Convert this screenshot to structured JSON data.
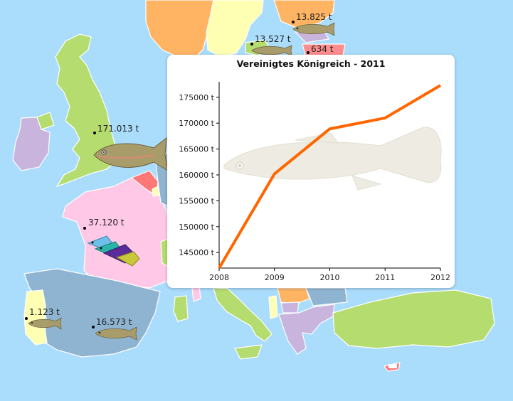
{
  "map": {
    "colors": {
      "sea": "#aadcfc",
      "green": "#b4dc6e",
      "pink": "#ffc8e6",
      "blue_gray": "#8eb4d2",
      "lavender": "#c8b4dc",
      "yellow": "#ffffb4",
      "orange": "#ffb464",
      "red": "#ff7878",
      "salmon": "#ff8c8c"
    },
    "labels": [
      {
        "id": "uk",
        "text": "171.013 t"
      },
      {
        "id": "fr",
        "text": "37.120 t"
      },
      {
        "id": "pt",
        "text": "1.123 t"
      },
      {
        "id": "es",
        "text": "16.573 t"
      },
      {
        "id": "se",
        "text": "13.825 t"
      },
      {
        "id": "dk",
        "text": "13.527 t"
      },
      {
        "id": "lt",
        "text": "634 t"
      }
    ],
    "icons": [
      "trout-icon",
      "tropical-fish-icon"
    ]
  },
  "popup": {
    "title": "Vereinigtes Königreich - 2011",
    "chart_data": {
      "type": "line",
      "title": "Vereinigtes Königreich - 2011",
      "x": [
        2008,
        2009,
        2010,
        2011,
        2012
      ],
      "xticks": [
        "2008",
        "2009",
        "2010",
        "2011",
        "2012"
      ],
      "series": [
        {
          "values": [
            142000,
            160200,
            168900,
            171000,
            177300
          ],
          "color": "#ff6600"
        }
      ],
      "yticks": [
        "145000 t",
        "150000 t",
        "155000 t",
        "160000 t",
        "165000 t",
        "170000 t",
        "175000 t"
      ],
      "ylim": [
        142000,
        178000
      ],
      "xlim": [
        2008,
        2012
      ],
      "grid": false,
      "watermark_icon": "fish-icon"
    }
  }
}
